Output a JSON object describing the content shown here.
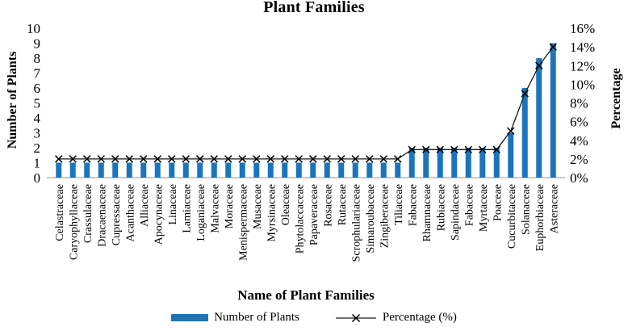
{
  "title": "Plant Families",
  "axes": {
    "left_title": "Number of Plants",
    "right_title": "Percentage",
    "x_title": "Name of Plant Families"
  },
  "legend": {
    "bars_label": "Number of Plants",
    "line_label": "Percentage (%)"
  },
  "chart_data": {
    "type": "bar+line",
    "title": "Plant Families",
    "xlabel": "Name of Plant Families",
    "ylabel_left": "Number of Plants",
    "ylabel_right": "Percentage",
    "grid": false,
    "legend_position": "bottom",
    "categories": [
      "Celastraceae",
      "Caryophyllaceae",
      "Crassulaceae",
      "Dracaenaceae",
      "Cupressaceae",
      "Acanthaceae",
      "Alliaceae",
      "Apocynaceae",
      "Linaceae",
      "Lamiaceae",
      "Loganiaceae",
      "Malvaceae",
      "Moraceae",
      "Menispermaceae",
      "Musaceae",
      "Myrsinaceae",
      "Oleaceae",
      "Phytolaccaceae",
      "Papaveraceae",
      "Rosaceae",
      "Rutaceae",
      "Scrophulariaceae",
      "Simaroubaceae",
      "Zingiberaceae",
      "Tiliaceae",
      "Fabaceae",
      "Rhamnaceae",
      "Rubiaceae",
      "Sapindaceae",
      "Fabaceae",
      "Myrtaceae",
      "Poaceae",
      "Cucurbitaceae",
      "Solanaceae",
      "Euphorbiaceae",
      "Asteraceae"
    ],
    "series": [
      {
        "name": "Number of Plants",
        "type": "bar",
        "axis": "left",
        "values": [
          1,
          1,
          1,
          1,
          1,
          1,
          1,
          1,
          1,
          1,
          1,
          1,
          1,
          1,
          1,
          1,
          1,
          1,
          1,
          1,
          1,
          1,
          1,
          1,
          1,
          2,
          2,
          2,
          2,
          2,
          2,
          2,
          3,
          6,
          8,
          9
        ]
      },
      {
        "name": "Percentage (%)",
        "type": "line",
        "axis": "right",
        "values": [
          2,
          2,
          2,
          2,
          2,
          2,
          2,
          2,
          2,
          2,
          2,
          2,
          2,
          2,
          2,
          2,
          2,
          2,
          2,
          2,
          2,
          2,
          2,
          2,
          2,
          3,
          3,
          3,
          3,
          3,
          3,
          3,
          5,
          9,
          12,
          14
        ]
      }
    ],
    "y_left": {
      "min": 0,
      "max": 10,
      "step": 1,
      "ticks": [
        "0",
        "1",
        "2",
        "3",
        "4",
        "5",
        "6",
        "7",
        "8",
        "9",
        "10"
      ]
    },
    "y_right": {
      "min": 0,
      "max": 16,
      "step": 2,
      "ticks": [
        "0%",
        "2%",
        "4%",
        "6%",
        "8%",
        "10%",
        "12%",
        "14%",
        "16%"
      ]
    },
    "colors": {
      "bar": "#1B75BC",
      "line": "#1A1A1A",
      "marker": "#000000",
      "baseline": "#C9C9C9",
      "text": "#000000"
    }
  }
}
